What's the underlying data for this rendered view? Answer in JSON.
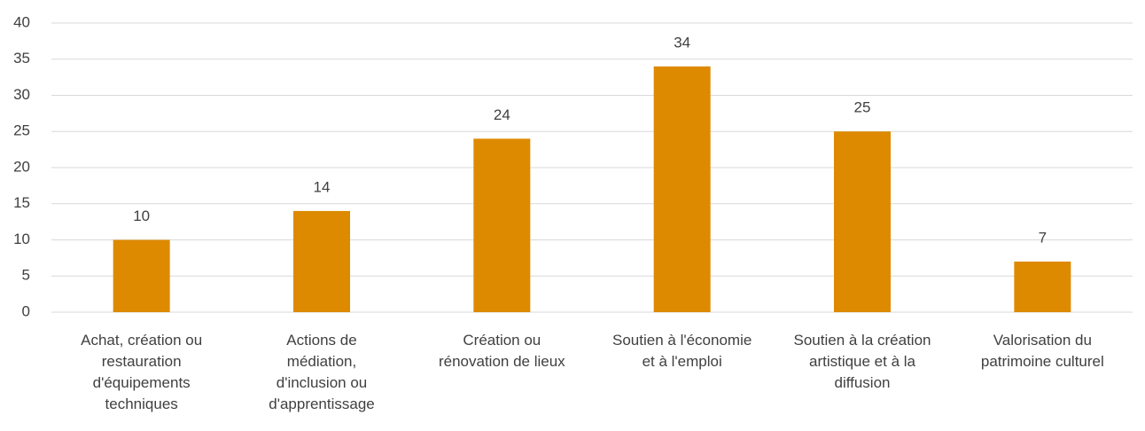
{
  "chart_data": {
    "type": "bar",
    "categories": [
      "Achat, création ou\nrestauration\nd'équipements\ntechniques",
      "Actions de\nmédiation,\nd'inclusion ou\nd'apprentissage",
      "Création ou\nrénovation de lieux",
      "Soutien à l'économie\net à l'emploi",
      "Soutien à la création\nartistique et à la\ndiffusion",
      "Valorisation du\npatrimoine culturel"
    ],
    "values": [
      10,
      14,
      24,
      34,
      25,
      7
    ],
    "color": "#dd8a00",
    "ylim": [
      0,
      40
    ],
    "yticks": [
      0,
      5,
      10,
      15,
      20,
      25,
      30,
      35,
      40
    ],
    "grid": true
  }
}
